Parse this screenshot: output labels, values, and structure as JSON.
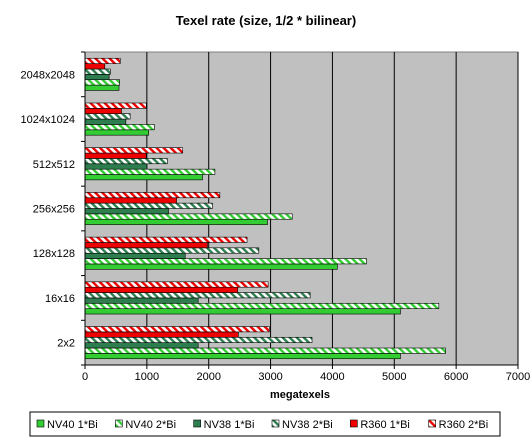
{
  "chart_data": {
    "type": "bar",
    "orientation": "horizontal",
    "title": "Texel rate (size, 1/2 * bilinear)",
    "xlabel": "megatexels",
    "ylabel": "",
    "xlim": [
      0,
      7000
    ],
    "xticks": [
      0,
      1000,
      2000,
      3000,
      4000,
      5000,
      6000,
      7000
    ],
    "categories": [
      "2x2",
      "16x16",
      "128x128",
      "256x256",
      "512x512",
      "1024x1024",
      "2048x2048"
    ],
    "grid": true,
    "legend_position": "bottom",
    "series": [
      {
        "name": "NV40 1*Bi",
        "color": "#33cc33",
        "pattern": "solid",
        "values": [
          5100,
          5100,
          4080,
          2950,
          1900,
          1030,
          550
        ]
      },
      {
        "name": "NV40 2*Bi",
        "color": "#33cc33",
        "pattern": "hatched",
        "values": [
          5830,
          5720,
          4550,
          3350,
          2100,
          1120,
          560
        ]
      },
      {
        "name": "NV38 1*Bi",
        "color": "#2e7d4f",
        "pattern": "solid",
        "values": [
          1830,
          1830,
          1620,
          1350,
          1000,
          660,
          390
        ]
      },
      {
        "name": "NV38 2*Bi",
        "color": "#2e7d4f",
        "pattern": "hatched",
        "values": [
          3670,
          3640,
          2810,
          2060,
          1330,
          730,
          410
        ]
      },
      {
        "name": "R360 1*Bi",
        "color": "#ee0000",
        "pattern": "solid",
        "values": [
          2480,
          2470,
          1980,
          1480,
          990,
          590,
          320
        ]
      },
      {
        "name": "R360 2*Bi",
        "color": "#ee0000",
        "pattern": "hatched",
        "values": [
          2980,
          2960,
          2620,
          2180,
          1580,
          990,
          570
        ]
      }
    ]
  }
}
